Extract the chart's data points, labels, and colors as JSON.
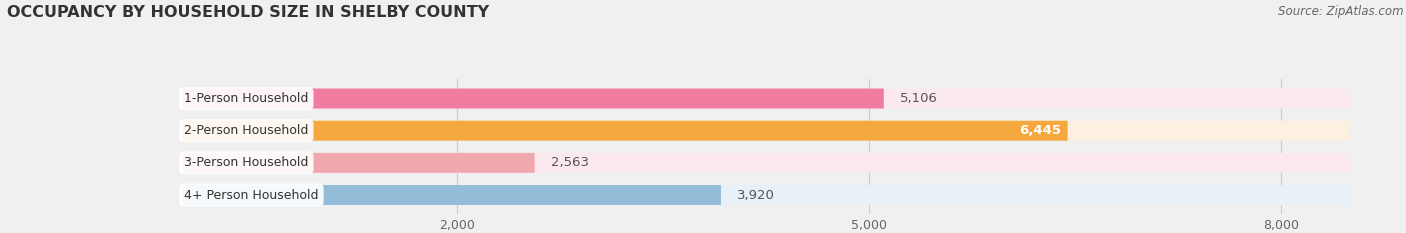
{
  "title": "OCCUPANCY BY HOUSEHOLD SIZE IN SHELBY COUNTY",
  "source": "Source: ZipAtlas.com",
  "categories": [
    "1-Person Household",
    "2-Person Household",
    "3-Person Household",
    "4+ Person Household"
  ],
  "values": [
    5106,
    6445,
    2563,
    3920
  ],
  "bar_colors": [
    "#f27ba0",
    "#f5a83e",
    "#f0a8ae",
    "#92bcd8"
  ],
  "bar_bg_colors": [
    "#fce8ef",
    "#fdf0e0",
    "#fce8ef",
    "#e8f0f8"
  ],
  "xlim": [
    0,
    8500
  ],
  "xticks": [
    2000,
    5000,
    8000
  ],
  "xticklabels": [
    "2,000",
    "5,000",
    "8,000"
  ],
  "value_labels": [
    "5,106",
    "6,445",
    "2,563",
    "3,920"
  ],
  "label_inside": [
    false,
    true,
    false,
    false
  ],
  "background_color": "#f0f0f0",
  "title_color": "#333333",
  "source_color": "#666666",
  "bar_height": 0.62,
  "title_fontsize": 11.5,
  "source_fontsize": 8.5,
  "label_fontsize": 9.5,
  "tick_fontsize": 9,
  "cat_fontsize": 9
}
